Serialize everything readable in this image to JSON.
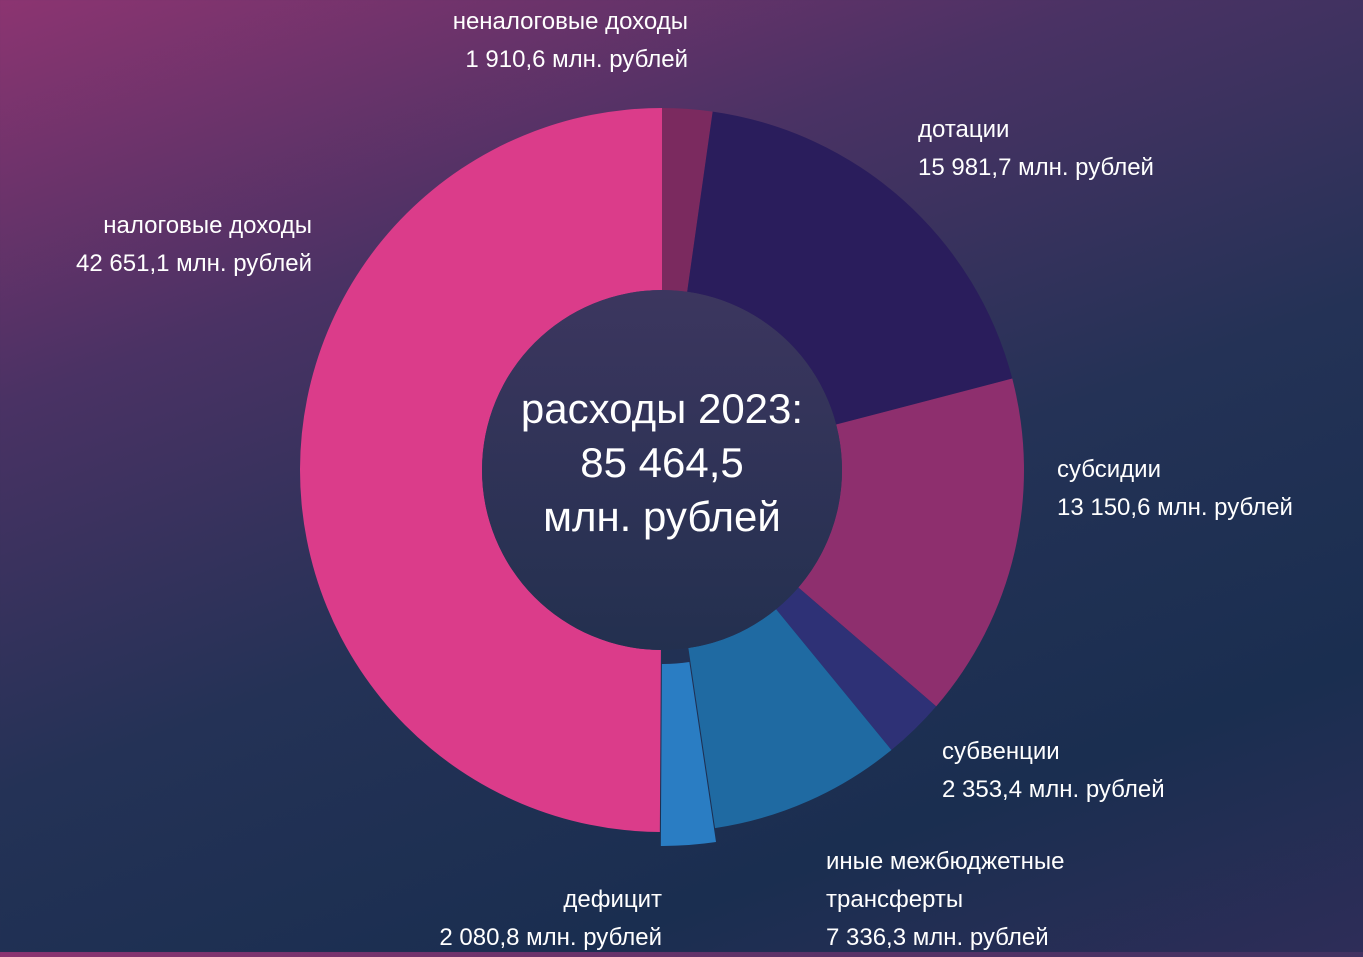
{
  "chart_data": {
    "type": "donut",
    "center_title": "расходы 2023:",
    "center_value": "85 464,5",
    "center_unit": "млн. рублей",
    "categories": [
      "неналоговые доходы",
      "дотации",
      "субсидии",
      "субвенции",
      "иные межбюджетные трансферты",
      "дефицит",
      "налоговые доходы"
    ],
    "values": [
      1910.6,
      15981.7,
      13150.6,
      2353.4,
      7336.3,
      2080.8,
      42651.1
    ],
    "value_labels": [
      "1 910,6 млн. рублей",
      "15 981,7 млн. рублей",
      "13 150,6 млн. рублей",
      "2 353,4 млн. рублей",
      "7 336,3 млн. рублей",
      "2 080,8 млн. рублей",
      "42 651,1 млн. рублей"
    ],
    "colors": [
      "#7b2a5f",
      "#2a1d5c",
      "#8e2f6e",
      "#2e3176",
      "#1f6aa2",
      "#2a7dc3",
      "#db3c8a"
    ]
  }
}
